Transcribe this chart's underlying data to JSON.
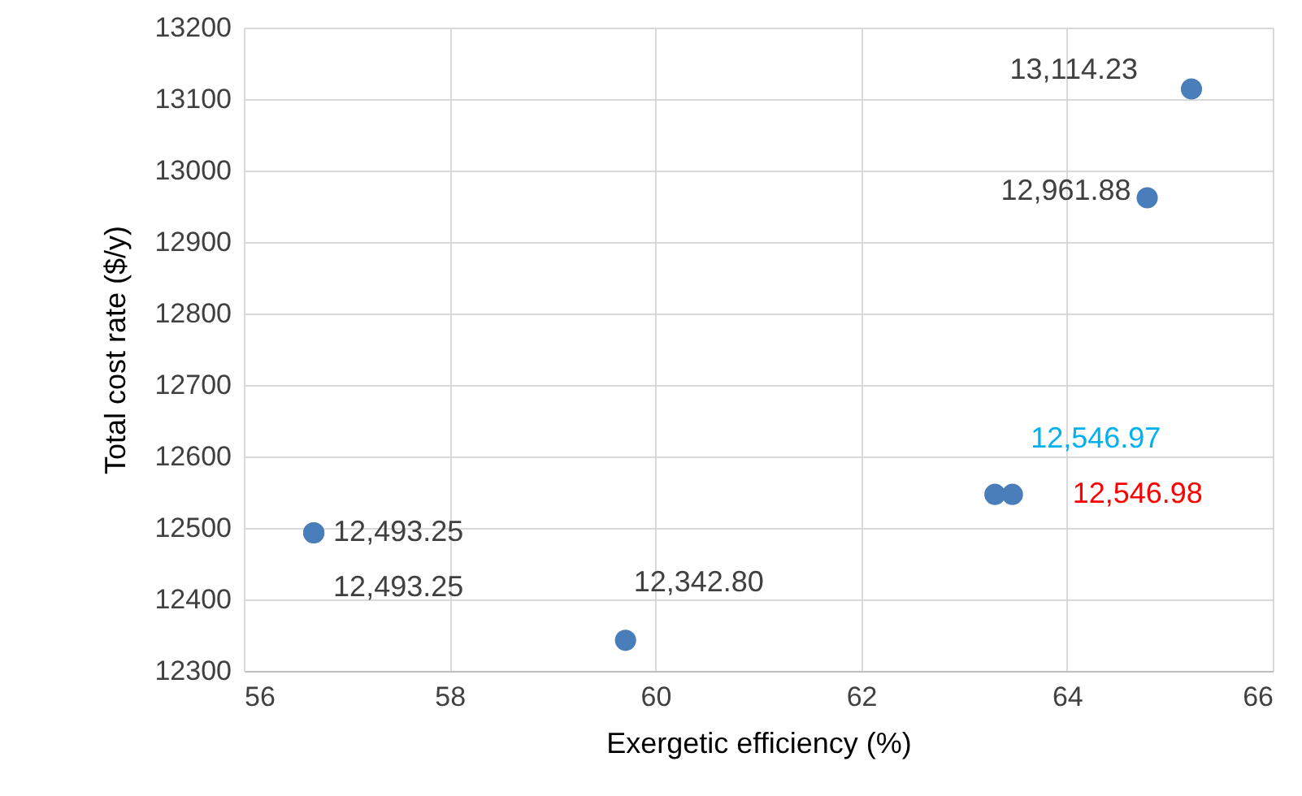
{
  "chart_data": {
    "type": "scatter",
    "xlabel": "Exergetic efficiency (%)",
    "ylabel": "Total cost rate ($/y)",
    "x": [
      56.68,
      56.68,
      59.71,
      63.3,
      63.47,
      64.78,
      65.21
    ],
    "series": [
      {
        "color": "#4a7ebb",
        "values": [
          12493.25,
          12493.25,
          12342.8,
          12546.97,
          12546.98,
          12961.88,
          13114.23
        ],
        "value_labels": [
          "12,493.25",
          "12,493.25",
          "12,342.80",
          "12,546.97",
          "12,546.98",
          "12,961.88",
          "13,114.23"
        ]
      }
    ],
    "xlim": [
      56,
      66
    ],
    "xticks": [
      56,
      58,
      60,
      62,
      64,
      66
    ],
    "ylim": [
      12300,
      13200
    ],
    "yticks": [
      12300,
      12400,
      12500,
      12600,
      12700,
      12800,
      12900,
      13000,
      13100,
      13200
    ],
    "grid": true,
    "marker": "circle"
  }
}
